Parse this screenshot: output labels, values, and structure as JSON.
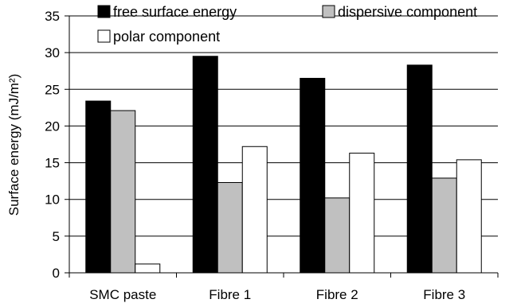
{
  "chart_data": {
    "type": "bar",
    "categories": [
      "SMC paste",
      "Fibre 1",
      "Fibre 2",
      "Fibre 3"
    ],
    "series": [
      {
        "name": "free surface energy",
        "values": [
          23.4,
          29.5,
          26.5,
          28.3
        ],
        "color": "#000000"
      },
      {
        "name": "dispersive component",
        "values": [
          22.1,
          12.3,
          10.2,
          12.9
        ],
        "color": "#c0c0c0"
      },
      {
        "name": "polar component",
        "values": [
          1.2,
          17.2,
          16.3,
          15.4
        ],
        "color": "#ffffff"
      }
    ],
    "ylabel": "Surface energy (mJ/m²)",
    "xlabel": "",
    "ylim": [
      0,
      35
    ],
    "yticks": [
      0,
      5,
      10,
      15,
      20,
      25,
      30,
      35
    ],
    "grid": true,
    "legend": "top"
  }
}
